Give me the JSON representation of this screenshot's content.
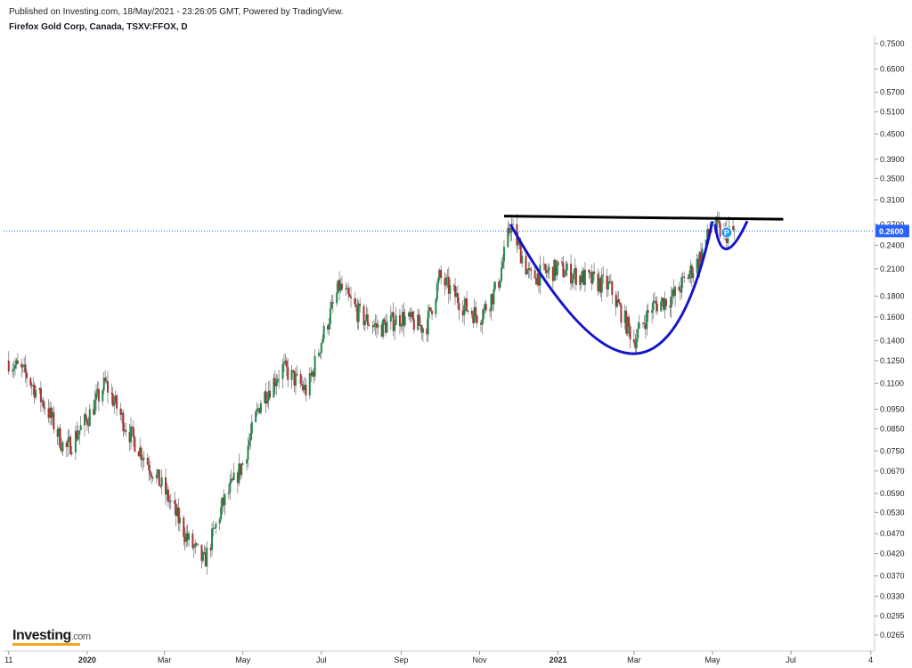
{
  "header": {
    "published": "Published on Investing.com, 18/May/2021 - 23:26:05 GMT, Powered by TradingView.",
    "instrument": "Firefox Gold Corp, Canada, TSXV:FFOX, D"
  },
  "logo": {
    "name": "Investing",
    "suffix": ".com"
  },
  "colors": {
    "up": "#1e8a4c",
    "down": "#a8322e",
    "current_line": "#2962ff",
    "cup_curve": "#1414c8",
    "resistance_line": "#000000",
    "axis": "#cfcfcf"
  },
  "chart_data": {
    "type": "candlestick",
    "scale": "log",
    "price_axis_labels": [
      "0.7500",
      "0.6500",
      "0.5700",
      "0.5100",
      "0.4500",
      "0.3900",
      "0.3500",
      "0.3100",
      "0.2700",
      "0.2400",
      "0.2100",
      "0.1800",
      "0.1600",
      "0.1400",
      "0.1250",
      "0.1100",
      "0.0950",
      "0.0850",
      "0.0750",
      "0.0670",
      "0.0590",
      "0.0530",
      "0.0470",
      "0.0420",
      "0.0370",
      "0.0330",
      "0.0295",
      "0.0265"
    ],
    "price_axis_values": [
      0.75,
      0.65,
      0.57,
      0.51,
      0.45,
      0.39,
      0.35,
      0.31,
      0.27,
      0.24,
      0.21,
      0.18,
      0.16,
      0.14,
      0.125,
      0.11,
      0.095,
      0.085,
      0.075,
      0.067,
      0.059,
      0.053,
      0.047,
      0.042,
      0.037,
      0.033,
      0.0295,
      0.0265
    ],
    "current_price_label": "0.2600",
    "current_price": 0.26,
    "time_axis_labels": [
      "11",
      "2020",
      "Mar",
      "May",
      "Jul",
      "Sep",
      "Nov",
      "2021",
      "Mar",
      "May",
      "Jul",
      "4"
    ],
    "time_axis_bold": [
      false,
      true,
      false,
      false,
      false,
      false,
      false,
      true,
      false,
      false,
      false,
      false
    ],
    "time_axis_dates": [
      "2019-11-01",
      "2020-01-01",
      "2020-03-01",
      "2020-05-01",
      "2020-07-01",
      "2020-09-01",
      "2020-11-01",
      "2021-01-01",
      "2021-03-01",
      "2021-05-01",
      "2021-07-01",
      "2021-09-01"
    ],
    "price_path": [
      [
        "2019-11-01",
        0.125
      ],
      [
        "2019-11-15",
        0.115
      ],
      [
        "2019-12-01",
        0.095
      ],
      [
        "2019-12-15",
        0.075
      ],
      [
        "2020-01-01",
        0.09
      ],
      [
        "2020-01-15",
        0.11
      ],
      [
        "2020-02-01",
        0.085
      ],
      [
        "2020-02-15",
        0.072
      ],
      [
        "2020-03-01",
        0.06
      ],
      [
        "2020-03-20",
        0.045
      ],
      [
        "2020-04-01",
        0.04
      ],
      [
        "2020-04-15",
        0.055
      ],
      [
        "2020-05-01",
        0.07
      ],
      [
        "2020-05-15",
        0.1
      ],
      [
        "2020-06-01",
        0.12
      ],
      [
        "2020-06-20",
        0.105
      ],
      [
        "2020-07-01",
        0.14
      ],
      [
        "2020-07-15",
        0.19
      ],
      [
        "2020-08-01",
        0.16
      ],
      [
        "2020-08-15",
        0.15
      ],
      [
        "2020-09-01",
        0.16
      ],
      [
        "2020-09-20",
        0.15
      ],
      [
        "2020-10-01",
        0.2
      ],
      [
        "2020-10-20",
        0.17
      ],
      [
        "2020-11-01",
        0.16
      ],
      [
        "2020-11-15",
        0.19
      ],
      [
        "2020-11-25",
        0.27
      ],
      [
        "2020-12-10",
        0.2
      ],
      [
        "2021-01-01",
        0.21
      ],
      [
        "2021-01-20",
        0.2
      ],
      [
        "2021-02-10",
        0.19
      ],
      [
        "2021-03-01",
        0.14
      ],
      [
        "2021-03-15",
        0.17
      ],
      [
        "2021-04-01",
        0.18
      ],
      [
        "2021-04-20",
        0.22
      ],
      [
        "2021-05-01",
        0.27
      ],
      [
        "2021-05-10",
        0.255
      ],
      [
        "2021-05-18",
        0.26
      ]
    ],
    "annotations": {
      "resistance": {
        "from": [
          "2020-11-20",
          0.283
        ],
        "to": [
          "2021-06-25",
          0.278
        ]
      },
      "cup": {
        "start": [
          "2020-11-25",
          0.27
        ],
        "bottom": [
          "2021-03-01",
          0.13
        ],
        "end": [
          "2021-05-01",
          0.275
        ]
      },
      "handle": {
        "start": [
          "2021-05-03",
          0.27
        ],
        "bottom": [
          "2021-05-12",
          0.235
        ],
        "end": [
          "2021-05-28",
          0.275
        ]
      },
      "marker": {
        "date": "2021-05-12",
        "price": 0.258,
        "label": "P"
      }
    }
  }
}
